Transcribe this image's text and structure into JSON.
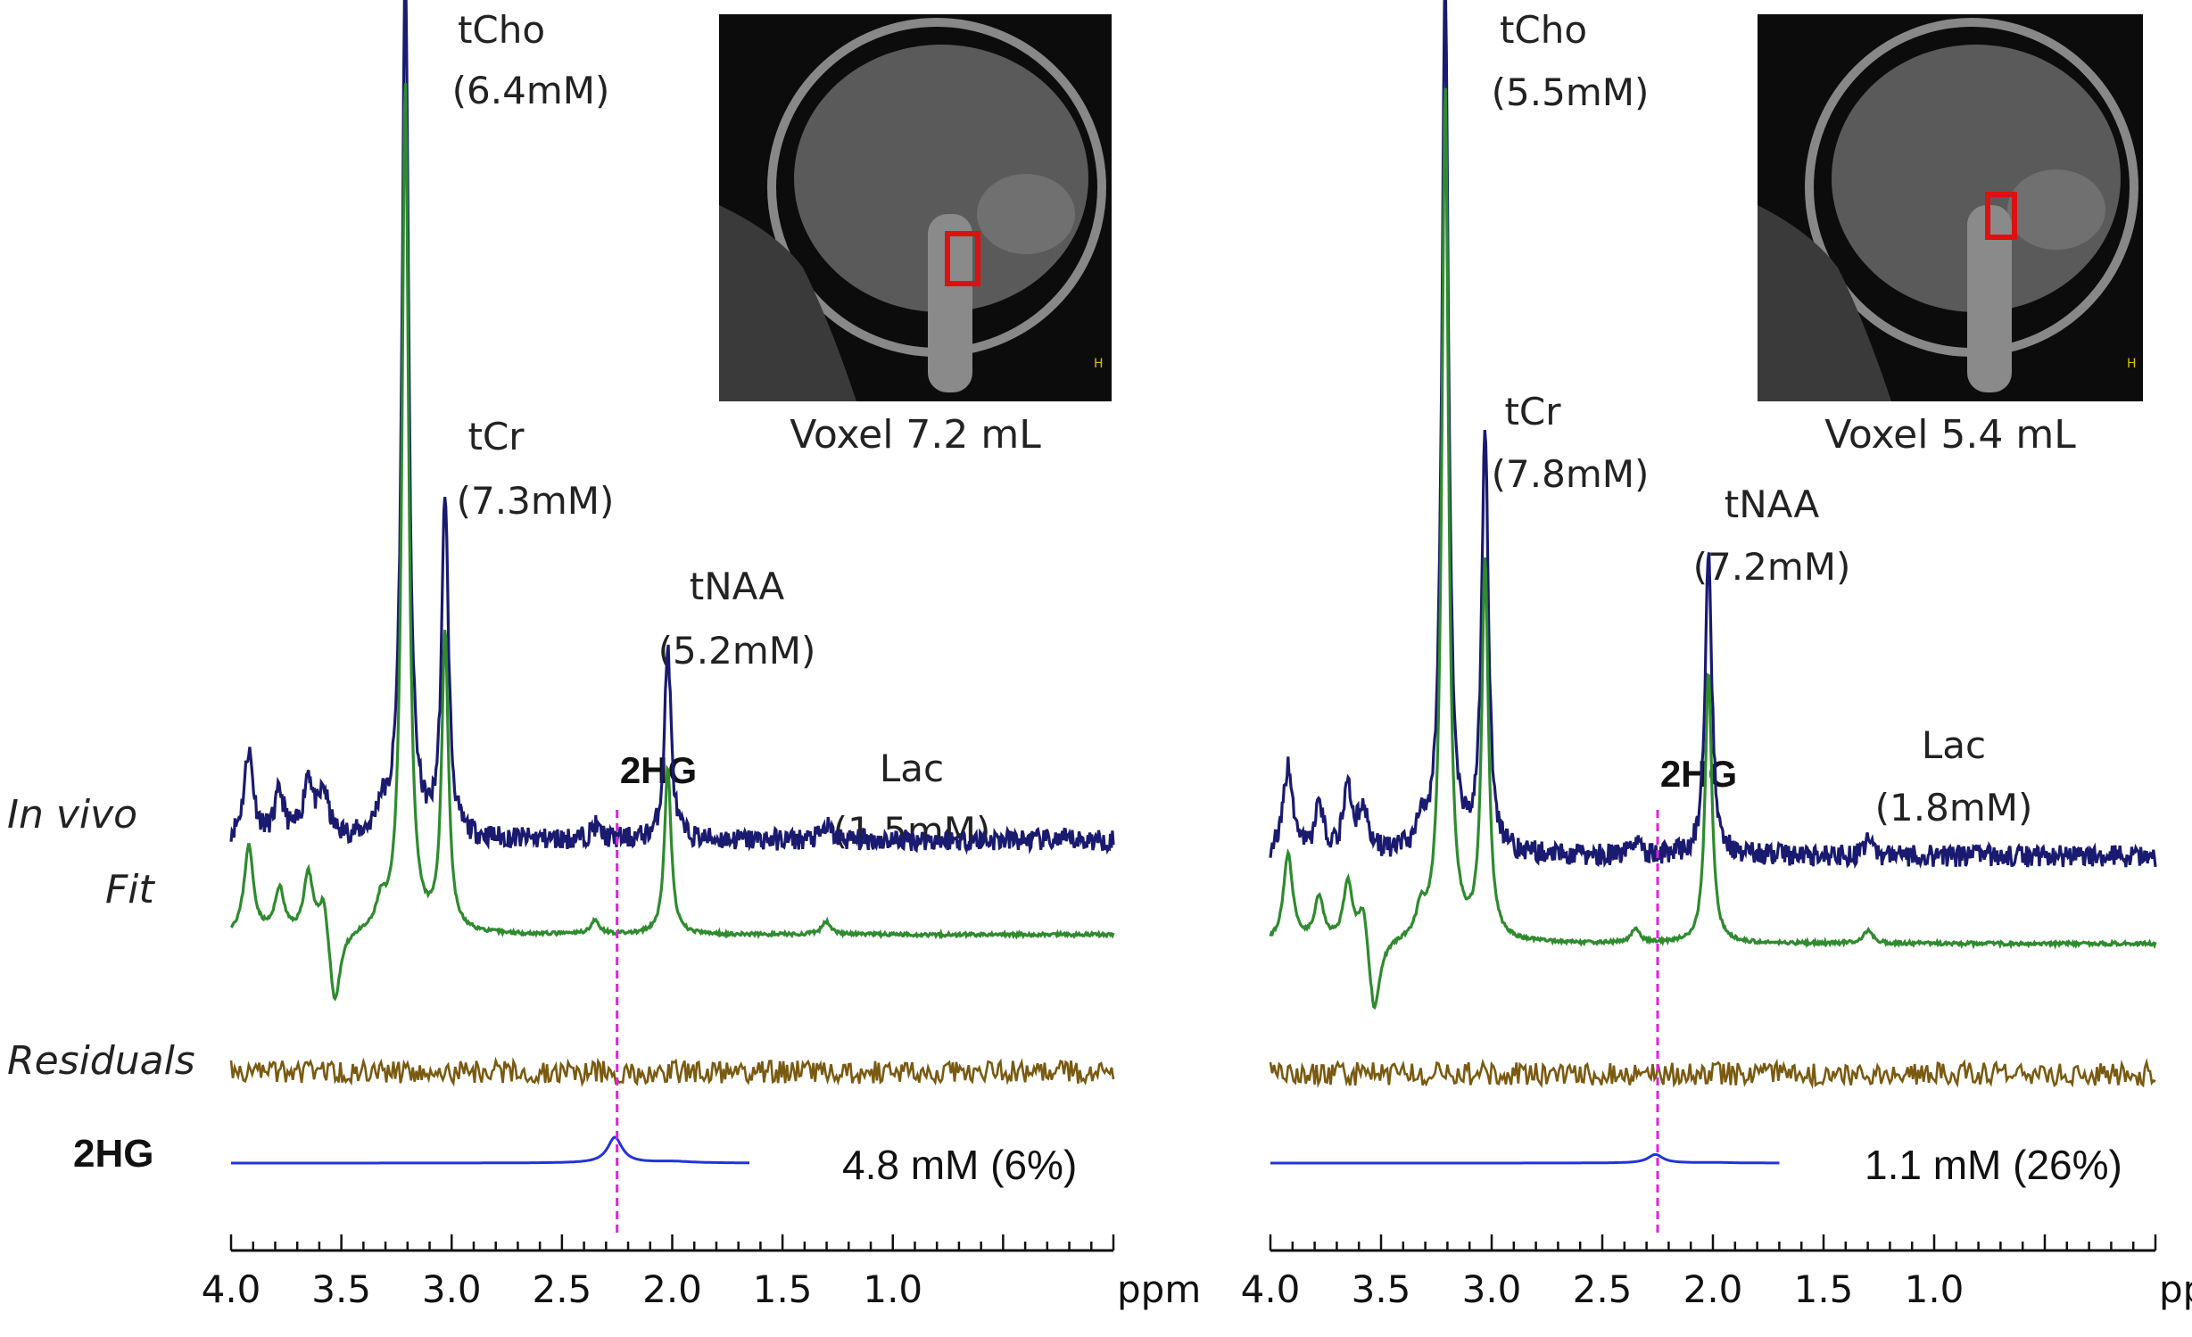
{
  "colors": {
    "in_vivo": "#1a1a70",
    "fit": "#2e8b2e",
    "residuals": "#7a5a10",
    "hg2": "#2233dd",
    "marker": "#e020e0",
    "voxel_box": "#dd1111"
  },
  "row_labels": {
    "in_vivo": "In vivo",
    "fit": "Fit",
    "residuals": "Residuals",
    "hg2": "2HG"
  },
  "chart_data": [
    {
      "type": "line",
      "title": "",
      "xlabel": "ppm",
      "xlim": [
        4.0,
        0.0
      ],
      "x_ticks": [
        "4.0",
        "3.5",
        "3.0",
        "2.5",
        "2.0",
        "1.5",
        "1.0"
      ],
      "marker_ppm": 2.25,
      "series": [
        {
          "name": "In vivo",
          "peaks": [
            {
              "ppm": 3.21,
              "height": 1.0
            },
            {
              "ppm": 3.03,
              "height": 0.39
            },
            {
              "ppm": 2.02,
              "height": 0.22
            }
          ]
        },
        {
          "name": "Fit",
          "peaks": [
            {
              "ppm": 3.21,
              "height": 0.97
            },
            {
              "ppm": 3.03,
              "height": 0.34
            },
            {
              "ppm": 2.02,
              "height": 0.19
            }
          ]
        },
        {
          "name": "Residuals"
        },
        {
          "name": "2HG",
          "peaks": [
            {
              "ppm": 2.26,
              "height": 0.06
            }
          ]
        }
      ],
      "annotations": {
        "tcho_name": "tCho",
        "tcho_conc": "(6.4mM)",
        "tcr_name": "tCr",
        "tcr_conc": "(7.3mM)",
        "tnaa_name": "tNAA",
        "tnaa_conc": "(5.2mM)",
        "lac_name": "Lac",
        "lac_conc": "(1.5mM)",
        "hg_marker": "2HG",
        "hg_conc": "4.8 mM (6%)"
      },
      "voxel_label": "Voxel 7.2 mL"
    },
    {
      "type": "line",
      "title": "",
      "xlabel": "ppm",
      "xlim": [
        4.0,
        0.0
      ],
      "x_ticks": [
        "4.0",
        "3.5",
        "3.0",
        "2.5",
        "2.0",
        "1.5",
        "1.0"
      ],
      "marker_ppm": 2.25,
      "series": [
        {
          "name": "In vivo",
          "peaks": [
            {
              "ppm": 3.21,
              "height": 1.0
            },
            {
              "ppm": 3.03,
              "height": 0.48
            },
            {
              "ppm": 2.02,
              "height": 0.35
            }
          ]
        },
        {
          "name": "Fit",
          "peaks": [
            {
              "ppm": 3.21,
              "height": 0.97
            },
            {
              "ppm": 3.03,
              "height": 0.43
            },
            {
              "ppm": 2.02,
              "height": 0.31
            }
          ]
        },
        {
          "name": "Residuals"
        },
        {
          "name": "2HG",
          "peaks": [
            {
              "ppm": 2.26,
              "height": 0.02
            }
          ]
        }
      ],
      "annotations": {
        "tcho_name": "tCho",
        "tcho_conc": "(5.5mM)",
        "tcr_name": "tCr",
        "tcr_conc": "(7.8mM)",
        "tnaa_name": "tNAA",
        "tnaa_conc": "(7.2mM)",
        "lac_name": "Lac",
        "lac_conc": "(1.8mM)",
        "hg_marker": "2HG",
        "hg_conc": "1.1 mM (26%)"
      },
      "voxel_label": "Voxel 5.4 mL"
    }
  ]
}
